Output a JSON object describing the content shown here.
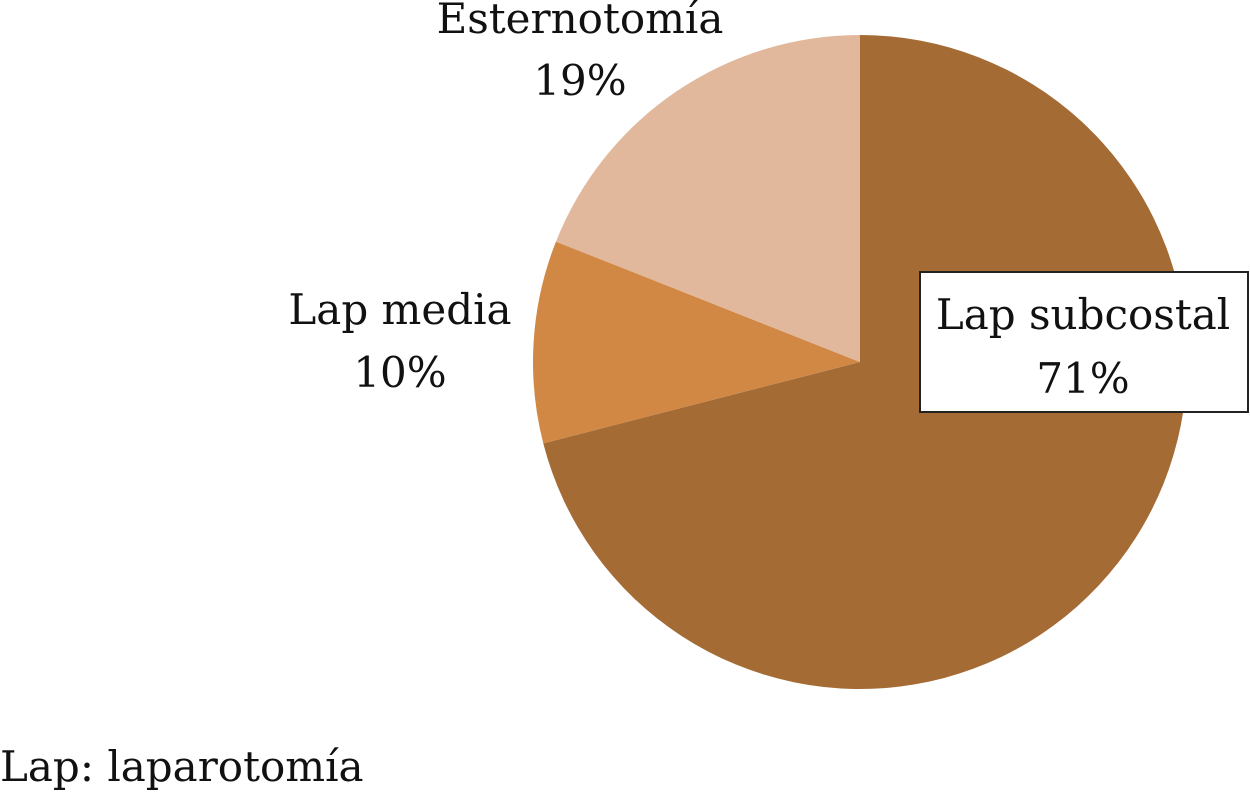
{
  "chart_data": {
    "type": "pie",
    "categories": [
      "Lap subcostal",
      "Lap media",
      "Esternotomía"
    ],
    "values": [
      71,
      10,
      19
    ],
    "value_labels": [
      "71%",
      "10%",
      "19%"
    ],
    "colors": [
      "#a56b35",
      "#d08844",
      "#e2b89c"
    ],
    "annotation": "Lap: laparotomía"
  }
}
